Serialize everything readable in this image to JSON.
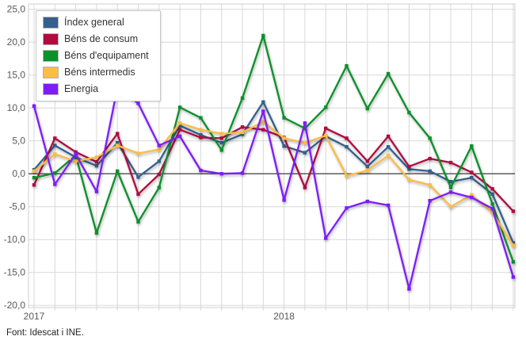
{
  "footer": {
    "source_text": "Font: Idescat i INE."
  },
  "style_colors": {
    "grid": "#d8d8d8",
    "plot_border": "#cfcfcf",
    "zero_line": "#4d4d4d",
    "axis_text": "#595959"
  },
  "chart_data": {
    "type": "line",
    "title": "",
    "grid": true,
    "legend_position": "top-left",
    "x_axis": {
      "categories": [
        "2017-01",
        "2017-02",
        "2017-03",
        "2017-04",
        "2017-05",
        "2017-06",
        "2017-07",
        "2017-08",
        "2017-09",
        "2017-10",
        "2017-11",
        "2017-12",
        "2018-01",
        "2018-02",
        "2018-03",
        "2018-04",
        "2018-05",
        "2018-06",
        "2018-07",
        "2018-08",
        "2018-09",
        "2018-10",
        "2018-11",
        "2018-12"
      ],
      "tick_labels": [
        {
          "label": "2017",
          "month_index": 0
        },
        {
          "label": "2018",
          "month_index": 12
        }
      ]
    },
    "y_axis": {
      "min": -20,
      "max": 25,
      "step": 5,
      "tick_labels": [
        "25,0",
        "20,0",
        "15,0",
        "10,0",
        "5,0",
        "0,0",
        "-5,0",
        "-10,0",
        "-15,0",
        "-20,0"
      ]
    },
    "series": [
      {
        "name": "Índex general",
        "color": "#33608f",
        "values": [
          0.6,
          4.3,
          2.5,
          1.2,
          4.7,
          -0.5,
          1.9,
          7.3,
          5.9,
          4.7,
          6.0,
          10.9,
          4.2,
          3.2,
          5.7,
          4.1,
          1.1,
          4.1,
          0.7,
          0.4,
          -1.2,
          -0.6,
          -3.1,
          -10.5
        ]
      },
      {
        "name": "Béns de consum",
        "color": "#b00c3f",
        "values": [
          -1.7,
          5.4,
          3.3,
          1.8,
          6.1,
          -3.1,
          -0.1,
          6.7,
          5.5,
          5.4,
          7.1,
          6.7,
          5.5,
          -2.1,
          6.9,
          5.4,
          1.9,
          5.7,
          1.1,
          2.3,
          1.7,
          0.2,
          -2.3,
          -5.7
        ]
      },
      {
        "name": "Béns d'equipament",
        "color": "#0a9129",
        "values": [
          -0.6,
          0.1,
          2.8,
          -9.0,
          0.4,
          -7.3,
          -2.1,
          10.1,
          8.5,
          3.6,
          11.5,
          21.0,
          8.5,
          6.9,
          10.1,
          16.4,
          9.9,
          15.2,
          9.3,
          5.4,
          -2.1,
          4.2,
          -4.6,
          -13.4
        ]
      },
      {
        "name": "Béns intermedis",
        "color": "#fcbd45",
        "values": [
          0.4,
          3.0,
          1.9,
          2.5,
          4.3,
          3.1,
          3.7,
          7.7,
          6.7,
          6.1,
          6.3,
          7.9,
          5.4,
          4.7,
          5.8,
          -0.3,
          0.5,
          2.8,
          -0.9,
          -1.7,
          -5.0,
          -3.2,
          -5.9,
          -10.9
        ]
      },
      {
        "name": "Energia",
        "color": "#7e1cf9",
        "values": [
          10.3,
          -1.6,
          3.0,
          -2.7,
          13.1,
          10.7,
          4.3,
          5.7,
          0.5,
          0.0,
          0.1,
          9.5,
          -4.0,
          7.7,
          -9.8,
          -5.2,
          -4.2,
          -4.8,
          -17.5,
          -4.1,
          -2.8,
          -3.6,
          -5.3,
          -15.7
        ]
      }
    ]
  }
}
